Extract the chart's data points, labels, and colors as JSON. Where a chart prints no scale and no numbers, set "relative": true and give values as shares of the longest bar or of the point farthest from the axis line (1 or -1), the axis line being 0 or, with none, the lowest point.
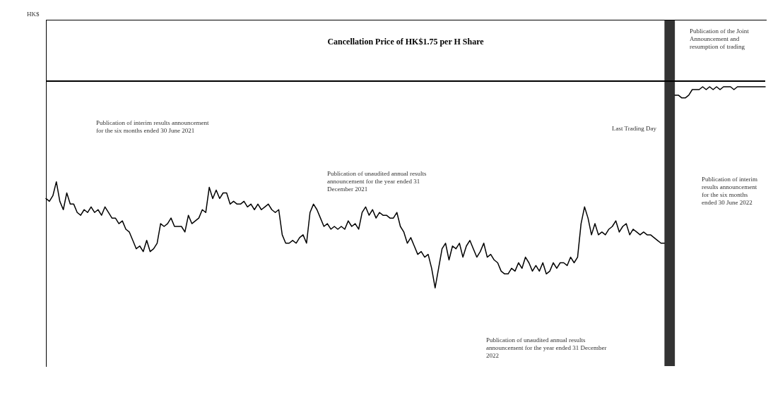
{
  "chart_data": {
    "type": "line",
    "relative": true,
    "color": "#000000",
    "grid": false,
    "marker": "none",
    "line_style": "solid",
    "categories": [
      null,
      null,
      null,
      null,
      null,
      null,
      null,
      null,
      null,
      null,
      null,
      null,
      null,
      null,
      null,
      null,
      null,
      null,
      null,
      null,
      null,
      null,
      null,
      null,
      null,
      null,
      null,
      null,
      null,
      null,
      null,
      null,
      null,
      null,
      null,
      null,
      null,
      null,
      null,
      null,
      null,
      null,
      null,
      null,
      null,
      null,
      null,
      null,
      null,
      null,
      null,
      null,
      null,
      null,
      null,
      null,
      null,
      null,
      null,
      null,
      null,
      null,
      null,
      null,
      null,
      null,
      null,
      null,
      null,
      null,
      null,
      null,
      null,
      null,
      null,
      null,
      null,
      null,
      null,
      null,
      null,
      null,
      null,
      null,
      null,
      null,
      null,
      null,
      null,
      null,
      null,
      null,
      null,
      null,
      null,
      null,
      null,
      null,
      null,
      null,
      null,
      null,
      null,
      null,
      null,
      null,
      null,
      null,
      null,
      null,
      null,
      null,
      null,
      null,
      null,
      null,
      null,
      null,
      null,
      null,
      null,
      null,
      null,
      null,
      null,
      null,
      null,
      null,
      null,
      null,
      null,
      null,
      null,
      null,
      null,
      null,
      null,
      null,
      null,
      null,
      null,
      null,
      null,
      null,
      null,
      null,
      null,
      null,
      null,
      null,
      null,
      null,
      null,
      null,
      null,
      null,
      null,
      null,
      null,
      null,
      null,
      null,
      null,
      null,
      null,
      null,
      null,
      null,
      null,
      null,
      null,
      null,
      null,
      null,
      null,
      null,
      null,
      null,
      null,
      null,
      null,
      null,
      null,
      null,
      null,
      null,
      null,
      null,
      null,
      null,
      null,
      null,
      null,
      null,
      null,
      null,
      null,
      null,
      null,
      null,
      null,
      null,
      null,
      null,
      null,
      null,
      null,
      null
    ],
    "values": [
      0.6,
      0.59,
      0.61,
      0.66,
      0.59,
      0.56,
      0.62,
      0.58,
      0.58,
      0.55,
      0.54,
      0.56,
      0.55,
      0.57,
      0.55,
      0.56,
      0.54,
      0.57,
      0.55,
      0.53,
      0.53,
      0.51,
      0.52,
      0.49,
      0.48,
      0.45,
      0.42,
      0.43,
      0.41,
      0.45,
      0.41,
      0.42,
      0.44,
      0.51,
      0.5,
      0.51,
      0.53,
      0.5,
      0.5,
      0.5,
      0.48,
      0.54,
      0.51,
      0.52,
      0.53,
      0.56,
      0.55,
      0.64,
      0.6,
      0.63,
      0.6,
      0.62,
      0.62,
      0.58,
      0.59,
      0.58,
      0.58,
      0.59,
      0.57,
      0.58,
      0.56,
      0.58,
      0.56,
      0.57,
      0.58,
      0.56,
      0.55,
      0.56,
      0.47,
      0.44,
      0.44,
      0.45,
      0.44,
      0.46,
      0.47,
      0.44,
      0.55,
      0.58,
      0.56,
      0.53,
      0.5,
      0.51,
      0.49,
      0.5,
      0.49,
      0.5,
      0.49,
      0.52,
      0.5,
      0.51,
      0.49,
      0.55,
      0.57,
      0.54,
      0.56,
      0.53,
      0.55,
      0.54,
      0.54,
      0.53,
      0.53,
      0.55,
      0.5,
      0.48,
      0.44,
      0.46,
      0.43,
      0.4,
      0.41,
      0.39,
      0.4,
      0.35,
      0.28,
      0.35,
      0.42,
      0.44,
      0.38,
      0.43,
      0.42,
      0.44,
      0.39,
      0.43,
      0.45,
      0.42,
      0.39,
      0.41,
      0.44,
      0.39,
      0.4,
      0.38,
      0.37,
      0.34,
      0.33,
      0.33,
      0.35,
      0.34,
      0.37,
      0.35,
      0.39,
      0.37,
      0.34,
      0.36,
      0.34,
      0.37,
      0.33,
      0.34,
      0.37,
      0.35,
      0.37,
      0.37,
      0.36,
      0.39,
      0.37,
      0.39,
      0.51,
      0.57,
      0.53,
      0.47,
      0.51,
      0.47,
      0.48,
      0.47,
      0.49,
      0.5,
      0.52,
      0.48,
      0.5,
      0.51,
      0.47,
      0.49,
      0.48,
      0.47,
      0.48,
      0.47,
      0.47,
      0.46,
      0.45,
      0.44,
      0.44,
      null,
      null,
      0.97,
      0.97,
      0.96,
      0.96,
      0.97,
      0.99,
      0.99,
      0.99,
      1.0,
      0.99,
      1.0,
      0.99,
      1.0,
      0.99,
      1.0,
      1.0,
      1.0,
      0.99,
      1.0,
      1.0,
      1.0,
      1.0,
      1.0,
      1.0,
      1.0,
      1.0,
      1.0
    ],
    "ref_lines": [
      {
        "axis": "y",
        "value": 1.02,
        "label": "Cancellation Price of HK$1.75 per H Share",
        "color": "#000000",
        "line_style": "solid"
      }
    ],
    "annotations": [
      "HK$",
      "Publication of interim results announcement for the six months ended 30 June 2021",
      "Publication of unaudited annual results announcement for the year ended 31 December 2021",
      "Publication of unaudited annual results announcement for the year ended 31 December 2022",
      "Last Trading Day",
      "Publication of the Joint Announcement and resumption of trading",
      "Publication of interim results announcement for the six months ended 30 June 2022"
    ]
  }
}
